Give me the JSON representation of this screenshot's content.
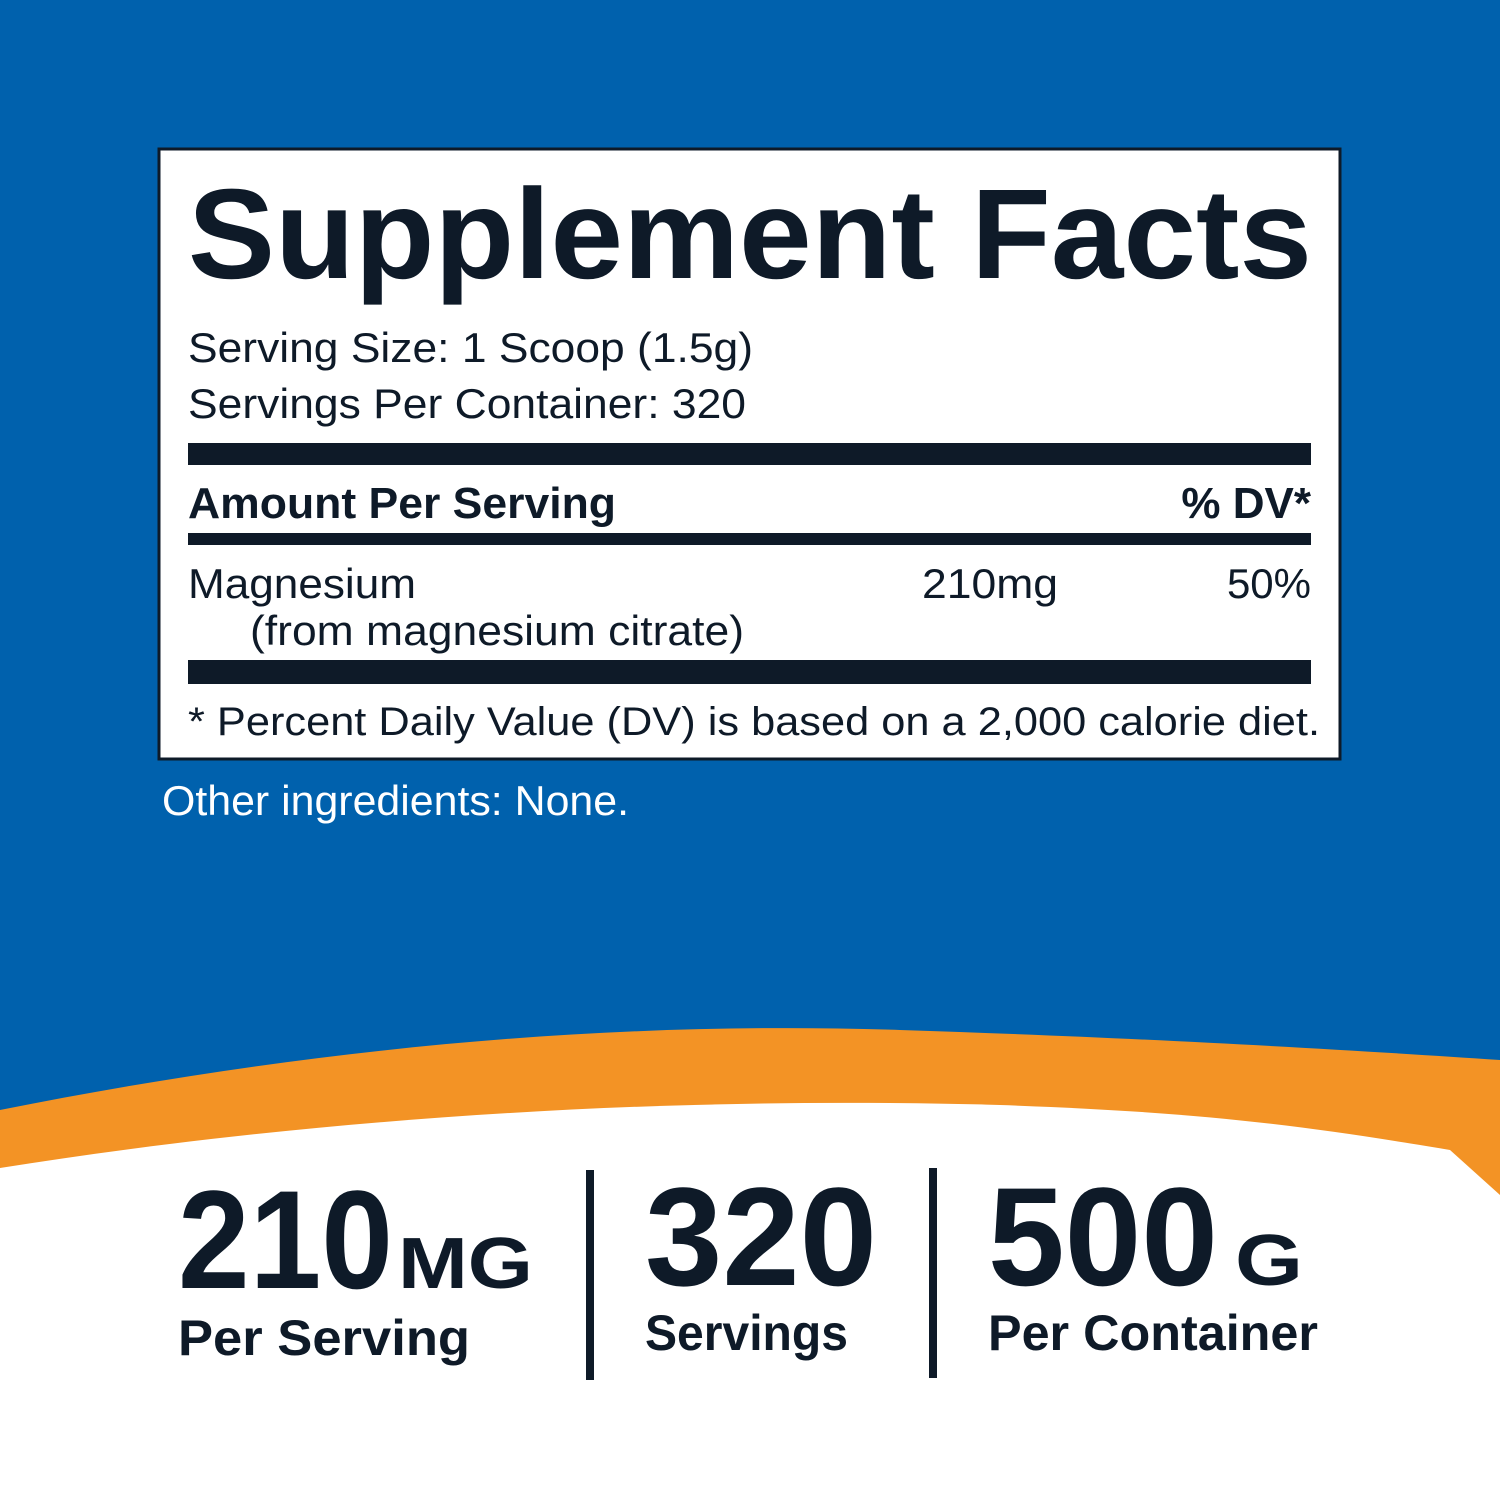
{
  "label": {
    "title": "Supplement Facts",
    "serving_size": "Serving Size: 1 Scoop (1.5g)",
    "servings_per_container": "Servings Per Container: 320",
    "header": {
      "amount": "Amount Per Serving",
      "dv": "% DV*"
    },
    "rows": [
      {
        "name": "Magnesium",
        "source": "(from magnesium citrate)",
        "amount": "210mg",
        "dv": "50%"
      }
    ],
    "footnote": "* Percent Daily Value (DV) is based on a 2,000 calorie diet."
  },
  "other_ingredients": "Other ingredients: None.",
  "stats": [
    {
      "number": "210",
      "unit": "MG",
      "caption": "Per Serving"
    },
    {
      "number": "320",
      "caption": "Servings"
    },
    {
      "number": "500",
      "unit": "G",
      "caption": "Per Container"
    }
  ]
}
